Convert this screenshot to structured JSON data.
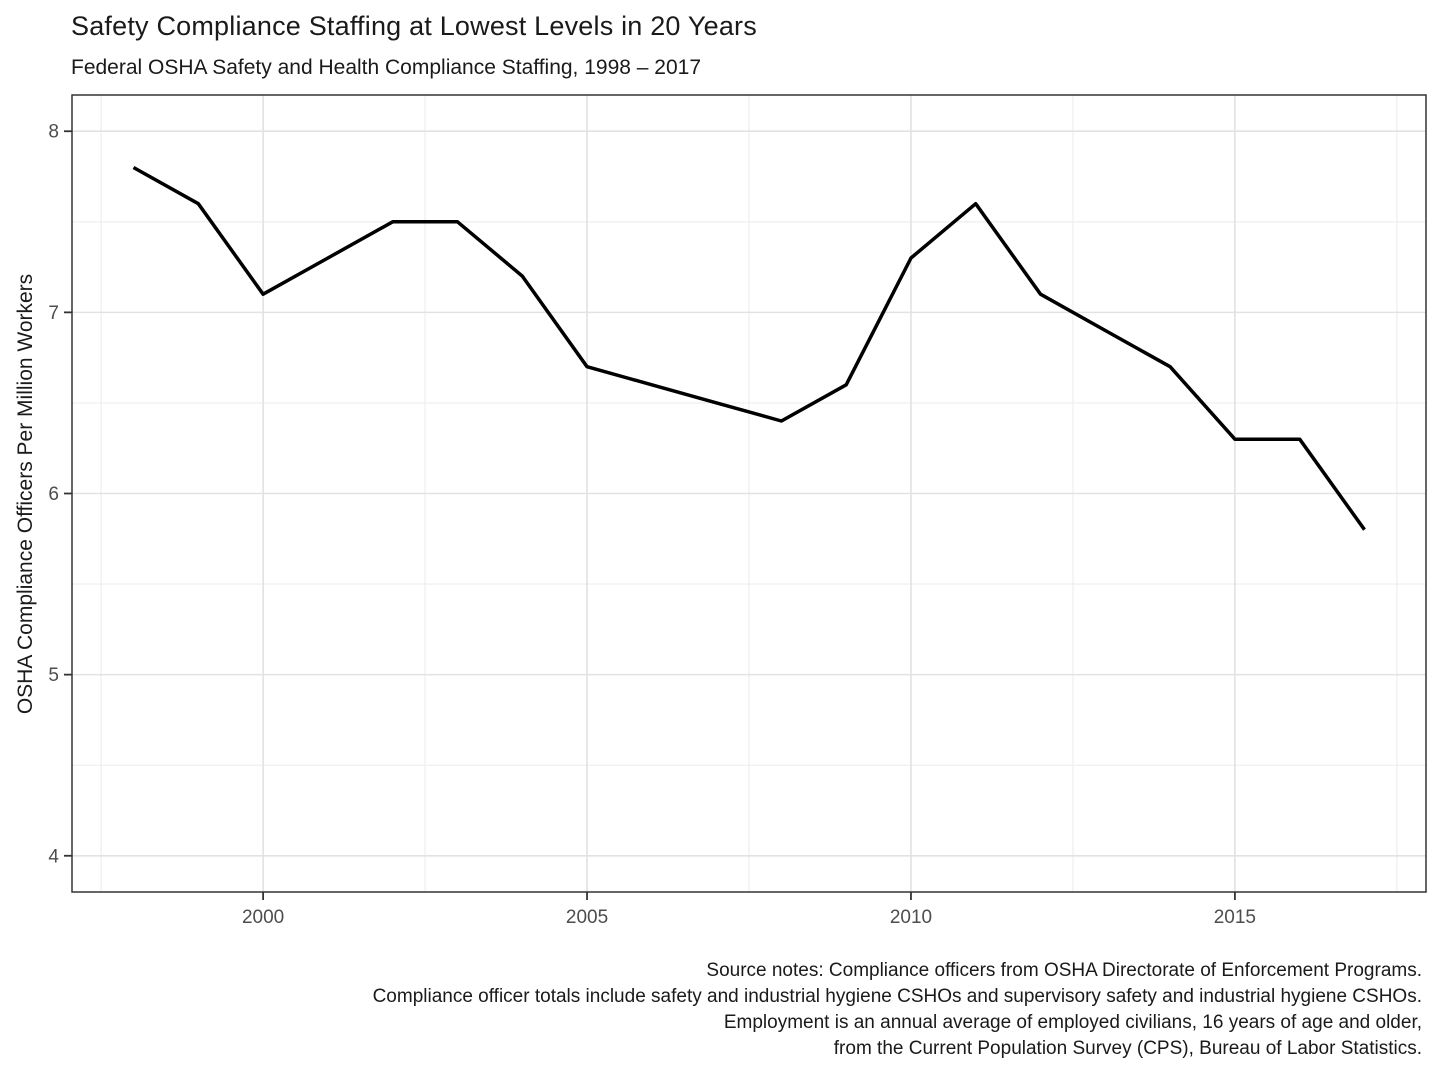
{
  "chart_data": {
    "type": "line",
    "title": "Safety Compliance Staffing at Lowest Levels in 20 Years",
    "subtitle": "Federal OSHA Safety and Health Compliance Staffing, 1998 – 2017",
    "ylabel": "OSHA Compliance Officers Per Million Workers",
    "xlabel": "",
    "x": [
      1998,
      1999,
      2000,
      2001,
      2002,
      2003,
      2004,
      2005,
      2006,
      2007,
      2008,
      2009,
      2010,
      2011,
      2012,
      2013,
      2014,
      2015,
      2016,
      2017
    ],
    "values": [
      7.8,
      7.6,
      7.1,
      7.3,
      7.5,
      7.5,
      7.2,
      6.7,
      6.6,
      6.5,
      6.4,
      6.6,
      7.3,
      7.6,
      7.1,
      6.9,
      6.7,
      6.3,
      6.3,
      5.8
    ],
    "series_name": "OSHA compliance officers per million workers",
    "xlim": [
      1997.05,
      2017.95
    ],
    "ylim": [
      3.8,
      8.2
    ],
    "x_ticks": [
      2000,
      2005,
      2010,
      2015
    ],
    "x_tick_labels": [
      "2000",
      "2005",
      "2010",
      "2015"
    ],
    "y_ticks": [
      4,
      5,
      6,
      7,
      8
    ],
    "y_tick_labels": [
      "4",
      "5",
      "6",
      "7",
      "8"
    ],
    "x_minor_ticks": [
      1997.5,
      2002.5,
      2007.5,
      2012.5,
      2017.5
    ],
    "y_minor_ticks": [
      4.5,
      5.5,
      6.5,
      7.5
    ],
    "grid": "on",
    "legend": "none"
  },
  "source_notes": [
    "Source notes: Compliance officers from OSHA Directorate of Enforcement Programs.",
    "Compliance officer totals include safety and industrial hygiene CSHOs and supervisory safety and industrial hygiene CSHOs.",
    "Employment is an annual average of employed civilians, 16 years of age and older,",
    "from the Current Population Survey (CPS), Bureau of Labor Statistics."
  ],
  "colors": {
    "line": "#000000",
    "grid_major": "#e2e2e2",
    "grid_minor": "#f0f0f0",
    "panel_border": "#333333",
    "tick_mark": "#333333",
    "tick_text": "#4d4d4d",
    "text": "#1a1a1a",
    "background": "#ffffff"
  }
}
